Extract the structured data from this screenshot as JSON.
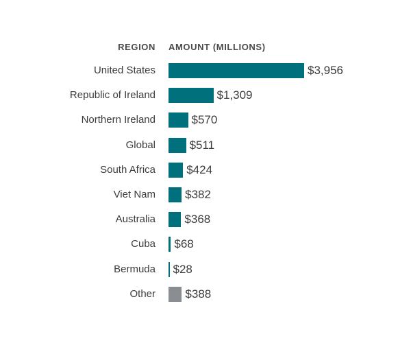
{
  "chart_data": {
    "type": "bar",
    "orientation": "horizontal",
    "column_headers": {
      "category": "REGION",
      "value": "AMOUNT (MILLIONS)"
    },
    "categories": [
      "United States",
      "Republic of Ireland",
      "Northern Ireland",
      "Global",
      "South Africa",
      "Viet Nam",
      "Australia",
      "Cuba",
      "Bermuda",
      "Other"
    ],
    "values": [
      3956,
      1309,
      570,
      511,
      424,
      382,
      368,
      68,
      28,
      388
    ],
    "value_labels": [
      "$3,956",
      "$1,309",
      "$570",
      "$511",
      "$424",
      "$382",
      "$368",
      "$68",
      "$28",
      "$388"
    ],
    "bar_colors": [
      "#00707d",
      "#00707d",
      "#00707d",
      "#00707d",
      "#00707d",
      "#00707d",
      "#00707d",
      "#00707d",
      "#00707d",
      "#8a8d91"
    ],
    "xlim": [
      0,
      3956
    ],
    "grid": false,
    "legend": "none"
  }
}
